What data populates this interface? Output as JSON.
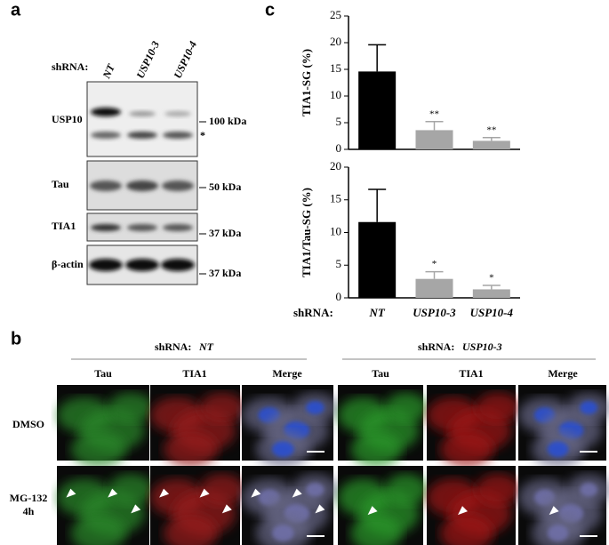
{
  "panels": {
    "a": "a",
    "b": "b",
    "c": "c"
  },
  "blot": {
    "shrna_label": "shRNA:",
    "lanes": [
      "NT",
      "USP10-3",
      "USP10-4"
    ],
    "rows": [
      "USP10",
      "Tau",
      "TIA1",
      "β-actin"
    ],
    "markers": [
      "100 kDa",
      "*",
      "50 kDa",
      "37 kDa",
      "37 kDa"
    ]
  },
  "chart_data": [
    {
      "type": "bar",
      "ylabel": "TIA1-SG (%)",
      "values": [
        14.6,
        3.6,
        1.6
      ],
      "errors": [
        5.0,
        1.6,
        0.6
      ],
      "colors": [
        "#000000",
        "#a6a6a6",
        "#a6a6a6"
      ],
      "value_annotations": [
        null,
        "**",
        "**"
      ],
      "ylim": [
        0,
        25
      ],
      "yticks": [
        0,
        5,
        10,
        15,
        20,
        25
      ]
    },
    {
      "type": "bar",
      "ylabel": "TIA1/Tau-SG (%)",
      "xlabel": "shRNA:",
      "categories": [
        "NT",
        "USP10-3",
        "USP10-4"
      ],
      "values": [
        11.6,
        2.9,
        1.3
      ],
      "errors": [
        5.0,
        1.1,
        0.6
      ],
      "colors": [
        "#000000",
        "#a6a6a6",
        "#a6a6a6"
      ],
      "value_annotations": [
        null,
        "*",
        "*"
      ],
      "ylim": [
        0,
        20
      ],
      "yticks": [
        0,
        5,
        10,
        15,
        20
      ]
    }
  ],
  "microscopy": {
    "groups": [
      {
        "prefix": "shRNA:",
        "name": "NT"
      },
      {
        "prefix": "shRNA:",
        "name": "USP10-3"
      }
    ],
    "columns": [
      "Tau",
      "TIA1",
      "Merge",
      "Tau",
      "TIA1",
      "Merge"
    ],
    "rows": [
      "DMSO",
      "MG-132",
      "4h"
    ]
  }
}
